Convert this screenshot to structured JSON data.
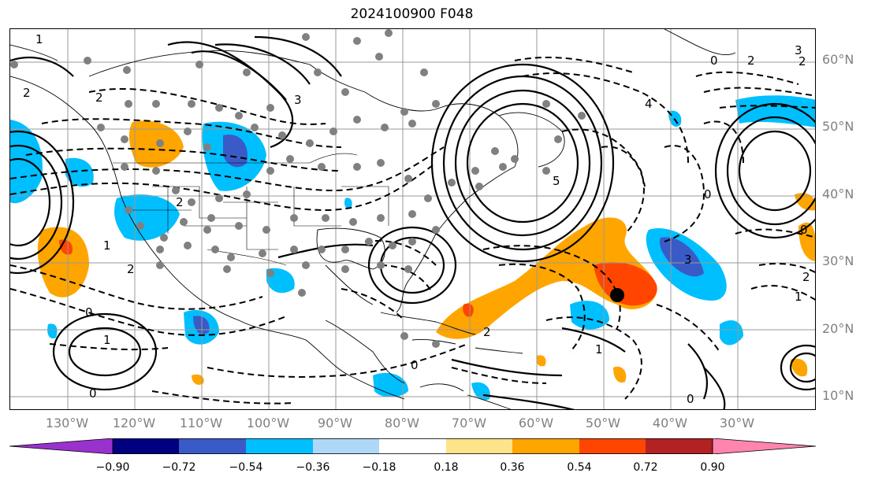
{
  "title": "2024100900 F048",
  "lat_labels": [
    "60°N",
    "50°N",
    "40°N",
    "30°N",
    "20°N",
    "10°N"
  ],
  "lon_labels": [
    "130°W",
    "120°W",
    "110°W",
    "100°W",
    "90°W",
    "80°W",
    "70°W",
    "60°W",
    "50°W",
    "40°W",
    "30°W"
  ],
  "contour_labels": [
    "1",
    "2",
    "3",
    "2",
    "3",
    "4",
    "5",
    "0",
    "2",
    "3",
    "1",
    "2",
    "0",
    "1",
    "0",
    "2",
    "1",
    "0",
    "0",
    "2",
    "0",
    "1",
    "0",
    "2",
    "2"
  ],
  "colorbar": {
    "ticks": [
      "−0.90",
      "−0.72",
      "−0.54",
      "−0.36",
      "−0.18",
      "0.18",
      "0.36",
      "0.54",
      "0.72",
      "0.90"
    ],
    "colors": [
      "#9932cc",
      "#000080",
      "#3a5bc7",
      "#00bfff",
      "#add8f6",
      "#ffffff",
      "#fde38a",
      "#ffa500",
      "#ff4500",
      "#b22222",
      "#ff85b0"
    ]
  },
  "colors": {
    "grid": "#999999",
    "station_dot": "#808080",
    "storm_center": "#000000",
    "axis_label": "#808080"
  }
}
